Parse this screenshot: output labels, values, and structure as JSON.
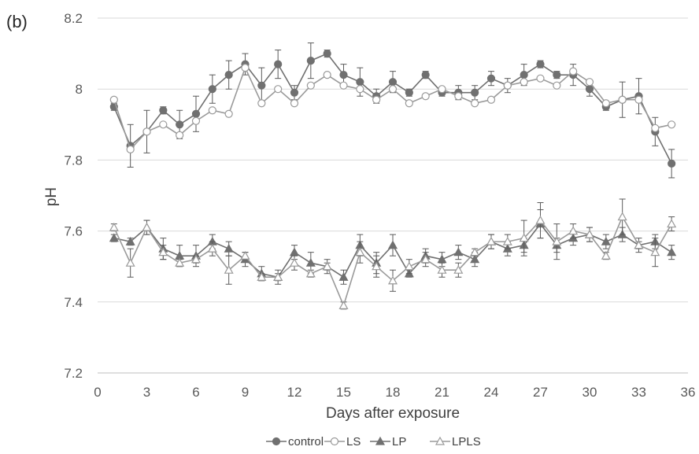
{
  "chart_data": {
    "type": "line",
    "panel_label": "(b)",
    "title": "",
    "xlabel": "Days after exposure",
    "ylabel": "pH",
    "xlim": [
      0,
      36
    ],
    "ylim": [
      7.2,
      8.2
    ],
    "x_ticks": [
      0,
      3,
      6,
      9,
      12,
      15,
      18,
      21,
      24,
      27,
      30,
      33,
      36
    ],
    "y_ticks": [
      7.2,
      7.4,
      7.6,
      7.8,
      8,
      8.2
    ],
    "y_tick_labels": [
      "7.2",
      "7.4",
      "7.6",
      "7.8",
      "8",
      "8.2"
    ],
    "grid": "horizontal",
    "legend_position": "bottom",
    "x": [
      1,
      2,
      3,
      4,
      5,
      6,
      7,
      8,
      9,
      10,
      11,
      12,
      13,
      14,
      15,
      16,
      17,
      18,
      19,
      20,
      21,
      22,
      23,
      24,
      25,
      26,
      27,
      28,
      29,
      30,
      31,
      32,
      33,
      34,
      35
    ],
    "series": [
      {
        "name": "control",
        "marker": "circle-filled",
        "color": "#707070",
        "values": [
          7.95,
          7.84,
          7.88,
          7.94,
          7.9,
          7.93,
          8.0,
          8.04,
          8.07,
          8.01,
          8.07,
          7.99,
          8.08,
          8.1,
          8.04,
          8.02,
          7.98,
          8.02,
          7.99,
          8.04,
          7.99,
          7.99,
          7.99,
          8.03,
          8.01,
          8.04,
          8.07,
          8.04,
          8.04,
          8.0,
          7.95,
          7.97,
          7.98,
          7.88,
          7.79
        ],
        "errors": [
          0.01,
          0.06,
          0.06,
          0.01,
          0.04,
          0.05,
          0.04,
          0.04,
          0.03,
          0.05,
          0.04,
          0.02,
          0.05,
          0.01,
          0.03,
          0.04,
          0.02,
          0.03,
          0.01,
          0.01,
          0.01,
          0.02,
          0.02,
          0.02,
          0.02,
          0.03,
          0.01,
          0.01,
          0.03,
          0.02,
          0.01,
          0.05,
          0.05,
          0.04,
          0.04
        ]
      },
      {
        "name": "LS",
        "marker": "circle-open",
        "color": "#9a9a9a",
        "values": [
          7.97,
          7.83,
          7.88,
          7.9,
          7.87,
          7.91,
          7.94,
          7.93,
          8.06,
          7.96,
          8.0,
          7.96,
          8.01,
          8.04,
          8.01,
          8.0,
          7.97,
          8.0,
          7.96,
          7.98,
          8.0,
          7.98,
          7.96,
          7.97,
          8.01,
          8.02,
          8.03,
          8.01,
          8.05,
          8.02,
          7.96,
          7.97,
          7.97,
          7.89,
          7.9
        ]
      },
      {
        "name": "LP",
        "marker": "triangle-filled",
        "color": "#707070",
        "values": [
          7.58,
          7.57,
          7.61,
          7.55,
          7.53,
          7.53,
          7.57,
          7.55,
          7.52,
          7.48,
          7.47,
          7.54,
          7.51,
          7.5,
          7.47,
          7.56,
          7.51,
          7.56,
          7.48,
          7.53,
          7.52,
          7.54,
          7.52,
          7.57,
          7.55,
          7.56,
          7.62,
          7.56,
          7.58,
          7.59,
          7.57,
          7.59,
          7.56,
          7.57,
          7.54
        ],
        "errors": [
          0.01,
          0.01,
          0.02,
          0.03,
          0.03,
          0.03,
          0.02,
          0.02,
          0.02,
          0.02,
          0.02,
          0.02,
          0.03,
          0.02,
          0.02,
          0.03,
          0.03,
          0.03,
          0.01,
          0.02,
          0.02,
          0.02,
          0.02,
          0.02,
          0.02,
          0.02,
          0.04,
          0.02,
          0.02,
          0.02,
          0.02,
          0.02,
          0.02,
          0.02,
          0.02
        ]
      },
      {
        "name": "LPLS",
        "marker": "triangle-open",
        "color": "#9a9a9a",
        "values": [
          7.61,
          7.51,
          7.61,
          7.54,
          7.51,
          7.52,
          7.55,
          7.49,
          7.53,
          7.47,
          7.47,
          7.51,
          7.48,
          7.5,
          7.39,
          7.54,
          7.5,
          7.46,
          7.5,
          7.52,
          7.49,
          7.49,
          7.54,
          7.57,
          7.57,
          7.58,
          7.63,
          7.57,
          7.6,
          7.59,
          7.53,
          7.64,
          7.56,
          7.54,
          7.62
        ],
        "errors": [
          0.01,
          0.04,
          0.02,
          0.02,
          0.01,
          0.01,
          0.02,
          0.04,
          0.01,
          0.01,
          0.01,
          0.02,
          0.01,
          0.01,
          0.01,
          0.03,
          0.03,
          0.03,
          0.02,
          0.02,
          0.02,
          0.02,
          0.01,
          0.02,
          0.02,
          0.05,
          0.05,
          0.05,
          0.02,
          0.02,
          0.01,
          0.05,
          0.01,
          0.04,
          0.02
        ]
      }
    ]
  }
}
